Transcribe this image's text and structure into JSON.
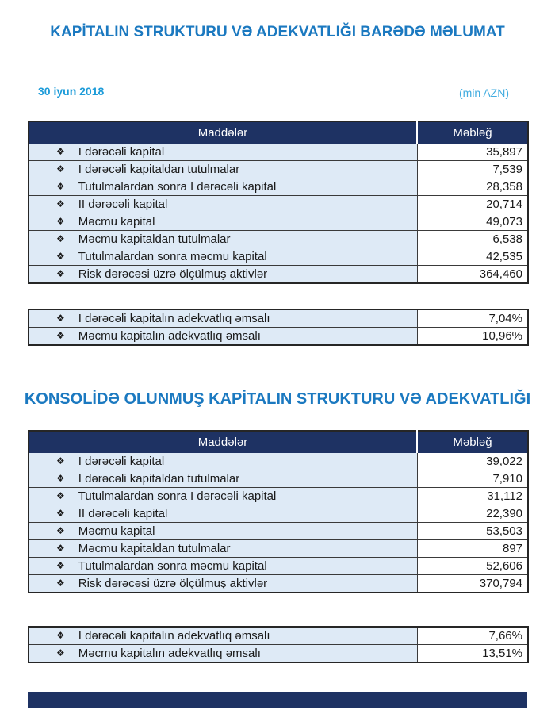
{
  "page": {
    "title1": "KAPİTALIN STRUKTURU VƏ ADEKVATLIĞI BARƏDƏ MƏLUMAT",
    "date": "30 iyun 2018",
    "unit": "(min AZN)",
    "title2": "KONSOLİDƏ OLUNMUŞ KAPİTALIN STRUKTURU VƏ ADEKVATLIĞI"
  },
  "table_headers": {
    "items": "Maddələr",
    "amount": "Məbləğ"
  },
  "bullet_glyph": "❖",
  "colors": {
    "title_blue": "#1b79c0",
    "date_blue": "#1e9cd9",
    "unit_blue": "#41ace0",
    "header_navy": "#1e3263",
    "row_light_blue": "#deeaf6",
    "border_dark": "#3a3a3a"
  },
  "section_bank": {
    "rows": [
      {
        "label": "I dərəcəli kapital",
        "value": "35,897"
      },
      {
        "label": "I dərəcəli kapitaldan tutulmalar",
        "value": "7,539"
      },
      {
        "label": "Tutulmalardan  sonra I dərəcəli kapital",
        "value": "28,358"
      },
      {
        "label": "II dərəcəli kapital",
        "value": "20,714"
      },
      {
        "label": "Məcmu kapital",
        "value": "49,073"
      },
      {
        "label": "Məcmu kapitaldan tutulmalar",
        "value": "6,538"
      },
      {
        "label": "Tutulmalardan sonra məcmu kapital",
        "value": "42,535"
      },
      {
        "label": "Risk dərəcəsi üzrə ölçülmuş aktivlər",
        "value": "364,460"
      }
    ],
    "ratios": [
      {
        "label": "I dərəcəli kapitalın adekvatlıq əmsalı",
        "value": "7,04%"
      },
      {
        "label": "Məcmu kapitalın adekvatlıq əmsalı",
        "value": "10,96%"
      }
    ]
  },
  "section_consolidated": {
    "rows": [
      {
        "label": "I dərəcəli kapital",
        "value": "39,022"
      },
      {
        "label": "I dərəcəli kapitaldan tutulmalar",
        "value": "7,910"
      },
      {
        "label": "Tutulmalardan  sonra I dərəcəli kapital",
        "value": "31,112"
      },
      {
        "label": "II dərəcəli kapital",
        "value": "22,390"
      },
      {
        "label": "Məcmu kapital",
        "value": "53,503"
      },
      {
        "label": "Məcmu kapitaldan tutulmalar",
        "value": "897"
      },
      {
        "label": "Tutulmalardan sonra məcmu kapital",
        "value": "52,606"
      },
      {
        "label": "Risk dərəcəsi üzrə ölçülmuş aktivlər",
        "value": "370,794"
      }
    ],
    "ratios": [
      {
        "label": "I dərəcəli kapitalın adekvatlıq əmsalı",
        "value": "7,66%"
      },
      {
        "label": "Məcmu kapitalın adekvatlıq əmsalı",
        "value": "13,51%"
      }
    ]
  }
}
